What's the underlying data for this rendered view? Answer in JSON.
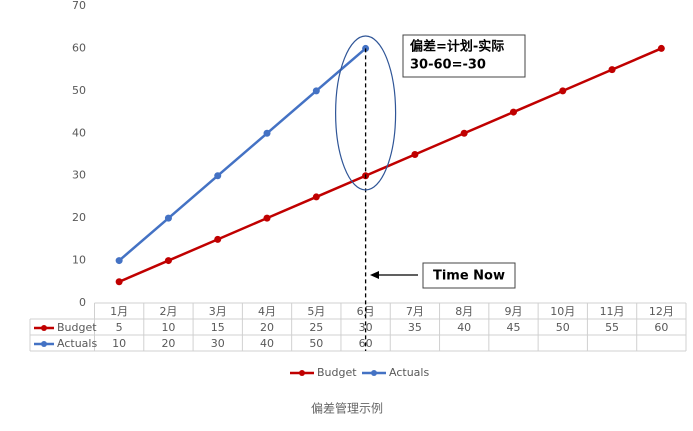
{
  "chart_data": {
    "type": "line",
    "categories": [
      "1月",
      "2月",
      "3月",
      "4月",
      "5月",
      "6月",
      "7月",
      "8月",
      "9月",
      "10月",
      "11月",
      "12月"
    ],
    "series": [
      {
        "name": "Budget",
        "color": "#c00000",
        "values": [
          5,
          10,
          15,
          20,
          25,
          30,
          35,
          40,
          45,
          50,
          55,
          60
        ]
      },
      {
        "name": "Actuals",
        "color": "#4472c4",
        "values": [
          10,
          20,
          30,
          40,
          50,
          60,
          null,
          null,
          null,
          null,
          null,
          null
        ]
      }
    ],
    "ylim": [
      0,
      70
    ],
    "yticks": [
      0,
      10,
      20,
      30,
      40,
      50,
      60,
      70
    ],
    "grid": false,
    "legend": "bottom",
    "data_table": true,
    "annotations": [
      "偏差=计划-实际",
      "30-60=-30",
      "Time Now"
    ],
    "caption": "偏差管理示例"
  }
}
